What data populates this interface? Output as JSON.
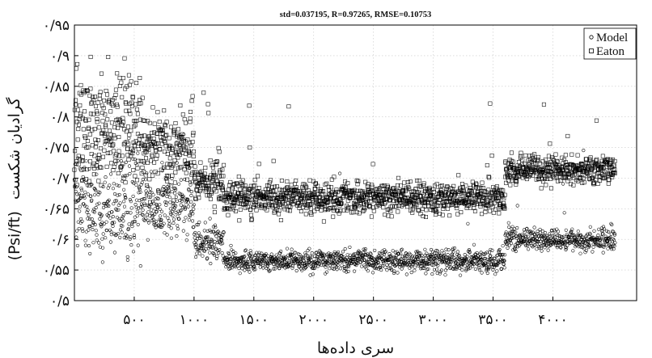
{
  "chart_data": {
    "type": "scatter",
    "title": "std=0.037195, R=0.97265, RMSE=0.10753",
    "xlabel": "سری داده‌ها",
    "ylabel_fa": "گرادیان شکست",
    "ylabel_unit": "(Psi/ft)",
    "xlim": [
      0,
      4700
    ],
    "ylim": [
      0.5,
      0.95
    ],
    "x_ticks": [
      500,
      1000,
      1500,
      2000,
      2500,
      3000,
      3500,
      4000
    ],
    "x_tick_labels": [
      "۵۰۰",
      "۱۰۰۰",
      "۱۵۰۰",
      "۲۰۰۰",
      "۲۵۰۰",
      "۳۰۰۰",
      "۳۵۰۰",
      "۴۰۰۰"
    ],
    "y_ticks": [
      0.5,
      0.55,
      0.6,
      0.65,
      0.7,
      0.75,
      0.8,
      0.85,
      0.9,
      0.95
    ],
    "y_tick_labels": [
      "۰/۵",
      "۰/۵۵",
      "۰/۶",
      "۰/۶۵",
      "۰/۷",
      "۰/۷۵",
      "۰/۸",
      "۰/۸۵",
      "۰/۹",
      "۰/۹۵"
    ],
    "grid": true,
    "legend_position": "top-right",
    "n_points_per_series": 4640,
    "series": [
      {
        "name": "Model",
        "marker": "circle",
        "color": "#000000",
        "segments": [
          {
            "x_start": 0,
            "x_end": 560,
            "mean": 0.65,
            "spread": 0.05
          },
          {
            "x_start": 560,
            "x_end": 1000,
            "mean": 0.655,
            "spread": 0.035
          },
          {
            "x_start": 1000,
            "x_end": 1250,
            "mean": 0.595,
            "spread": 0.02
          },
          {
            "x_start": 1250,
            "x_end": 3600,
            "mean": 0.565,
            "spread": 0.012
          },
          {
            "x_start": 3600,
            "x_end": 4520,
            "mean": 0.6,
            "spread": 0.012
          }
        ]
      },
      {
        "name": "Eaton",
        "marker": "square",
        "color": "#000000",
        "segments": [
          {
            "x_start": 0,
            "x_end": 560,
            "mean": 0.78,
            "spread": 0.065
          },
          {
            "x_start": 560,
            "x_end": 1000,
            "mean": 0.745,
            "spread": 0.045
          },
          {
            "x_start": 1000,
            "x_end": 1250,
            "mean": 0.695,
            "spread": 0.025
          },
          {
            "x_start": 1250,
            "x_end": 3600,
            "mean": 0.668,
            "spread": 0.018
          },
          {
            "x_start": 3600,
            "x_end": 4520,
            "mean": 0.713,
            "spread": 0.015
          }
        ]
      }
    ]
  }
}
